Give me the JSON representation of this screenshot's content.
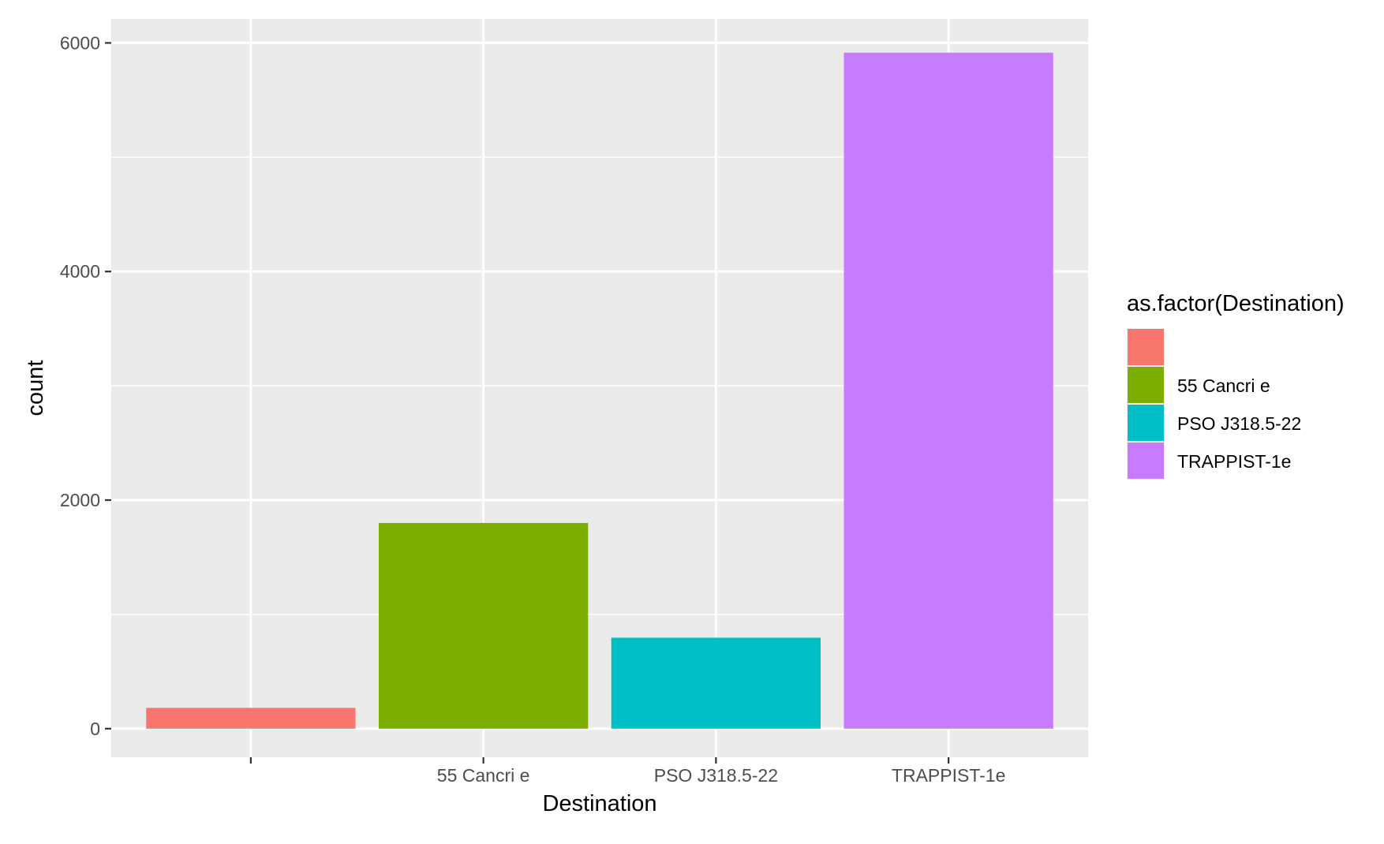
{
  "chart_data": {
    "type": "bar",
    "title": "",
    "xlabel": "Destination",
    "ylabel": "count",
    "categories": [
      "",
      "55 Cancri e",
      "PSO J318.5-22",
      "TRAPPIST-1e"
    ],
    "values": [
      182,
      1800,
      796,
      5915
    ],
    "ylim": [
      -250,
      6210
    ],
    "yticks": [
      0,
      2000,
      4000,
      6000
    ],
    "grid": true,
    "legend": {
      "title": "as.factor(Destination)",
      "placement": "right",
      "entries": [
        "",
        "55 Cancri e",
        "PSO J318.5-22",
        "TRAPPIST-1e"
      ]
    },
    "colors": [
      "#F8766D",
      "#7CAE00",
      "#00BFC4",
      "#C77CFF"
    ],
    "panel_background": "#EBEBEB",
    "grid_color": "#FFFFFF"
  }
}
